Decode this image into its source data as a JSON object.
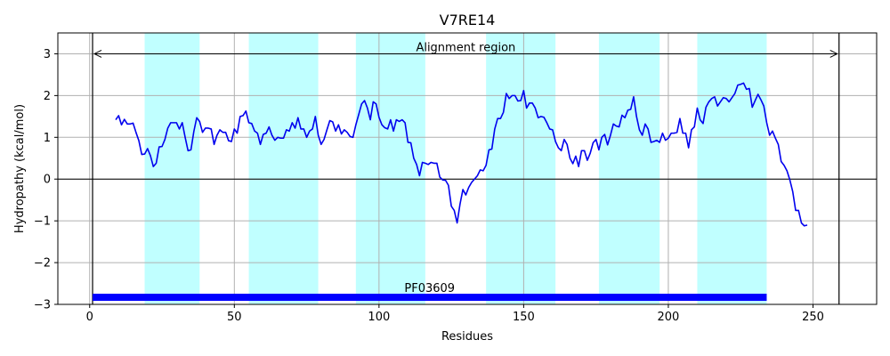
{
  "chart_data": {
    "type": "line",
    "title": "V7RE14",
    "xlabel": "Residues",
    "ylabel": "Hydropathy (kcal/mol)",
    "xlim": [
      -11,
      272
    ],
    "ylim": [
      -3,
      3.5
    ],
    "xticks": [
      0,
      50,
      100,
      150,
      200,
      250
    ],
    "yticks": [
      -3,
      -2,
      -1,
      0,
      1,
      2,
      3
    ],
    "xtick_labels": [
      "0",
      "50",
      "100",
      "150",
      "200",
      "250"
    ],
    "ytick_labels": [
      "−3",
      "−2",
      "−1",
      "0",
      "1",
      "2",
      "3"
    ],
    "grid": true,
    "colors": {
      "line": "#0000ee",
      "band": "#c0ffff",
      "domain_bar": "#0000ff",
      "grid": "#b0b0b0"
    },
    "highlight_bands": [
      [
        19,
        38
      ],
      [
        55,
        79
      ],
      [
        92,
        116
      ],
      [
        137,
        161
      ],
      [
        176,
        197
      ],
      [
        210,
        234
      ]
    ],
    "vertical_lines": [
      1,
      259
    ],
    "alignment_region": {
      "label": "Alignment region",
      "start": 1,
      "end": 259,
      "y": 3
    },
    "domain": {
      "label": "PF03609",
      "start": 1,
      "end": 234,
      "y": -2.83
    },
    "series": [
      {
        "x": [
          9,
          10,
          11,
          12,
          13,
          14,
          15,
          16,
          17,
          18,
          19,
          20,
          21,
          22,
          23,
          24,
          25,
          26,
          27,
          28,
          29,
          30,
          31,
          32,
          33,
          34,
          35,
          36,
          37,
          38,
          39,
          40,
          41,
          42,
          43,
          44,
          45,
          46,
          47,
          48,
          49,
          50,
          51,
          52,
          53,
          54,
          55,
          56,
          57,
          58,
          59,
          60,
          61,
          62,
          63,
          64,
          65,
          66,
          67,
          68,
          69,
          70,
          71,
          72,
          73,
          74,
          75,
          76,
          77,
          78,
          79,
          80,
          81,
          82,
          83,
          84,
          85,
          86,
          87,
          88,
          89,
          90,
          91,
          92,
          93,
          94,
          95,
          96,
          97,
          98,
          99,
          100,
          101,
          102,
          103,
          104,
          105,
          106,
          107,
          108,
          109,
          110,
          111,
          112,
          113,
          114,
          115,
          116,
          117,
          118,
          119,
          120,
          121,
          122,
          123,
          124,
          125,
          126,
          127,
          128,
          129,
          130,
          131,
          132,
          133,
          134,
          135,
          136,
          137,
          138,
          139,
          140,
          141,
          142,
          143,
          144,
          145,
          146,
          147,
          148,
          149,
          150,
          151,
          152,
          153,
          154,
          155,
          156,
          157,
          158,
          159,
          160,
          161,
          162,
          163,
          164,
          165,
          166,
          167,
          168,
          169,
          170,
          171,
          172,
          173,
          174,
          175,
          176,
          177,
          178,
          179,
          180,
          181,
          182,
          183,
          184,
          185,
          186,
          187,
          188,
          189,
          190,
          191,
          192,
          193,
          194,
          195,
          196,
          197,
          198,
          199,
          200,
          201,
          202,
          203,
          204,
          205,
          206,
          207,
          208,
          209,
          210,
          211,
          212,
          213,
          214,
          215,
          216,
          217,
          218,
          219,
          220,
          221,
          222,
          223,
          224,
          225,
          226,
          227,
          228,
          229,
          230,
          231,
          232,
          233,
          234,
          235,
          236,
          237,
          238,
          239,
          240,
          241,
          242,
          243,
          244,
          245,
          246,
          247,
          248
        ],
        "y": [
          1.42,
          1.52,
          1.3,
          1.43,
          1.32,
          1.32,
          1.34,
          1.12,
          0.92,
          0.59,
          0.6,
          0.73,
          0.56,
          0.3,
          0.38,
          0.77,
          0.78,
          0.95,
          1.22,
          1.35,
          1.35,
          1.35,
          1.2,
          1.35,
          1.0,
          0.68,
          0.7,
          1.14,
          1.47,
          1.38,
          1.12,
          1.22,
          1.22,
          1.2,
          0.83,
          1.05,
          1.18,
          1.12,
          1.12,
          0.92,
          0.9,
          1.2,
          1.1,
          1.5,
          1.52,
          1.63,
          1.35,
          1.33,
          1.15,
          1.1,
          0.83,
          1.07,
          1.1,
          1.25,
          1.05,
          0.93,
          1.0,
          0.98,
          0.98,
          1.18,
          1.15,
          1.35,
          1.22,
          1.47,
          1.2,
          1.2,
          1.0,
          1.15,
          1.2,
          1.5,
          1.05,
          0.83,
          0.95,
          1.18,
          1.4,
          1.37,
          1.15,
          1.3,
          1.08,
          1.18,
          1.12,
          1.02,
          1.0,
          1.3,
          1.55,
          1.8,
          1.88,
          1.7,
          1.42,
          1.85,
          1.8,
          1.48,
          1.3,
          1.23,
          1.2,
          1.42,
          1.15,
          1.42,
          1.38,
          1.42,
          1.35,
          0.88,
          0.87,
          0.5,
          0.35,
          0.08,
          0.4,
          0.38,
          0.35,
          0.4,
          0.38,
          0.38,
          0.05,
          -0.02,
          -0.03,
          -0.15,
          -0.65,
          -0.75,
          -1.05,
          -0.6,
          -0.25,
          -0.38,
          -0.2,
          -0.08,
          0.0,
          0.08,
          0.22,
          0.2,
          0.33,
          0.7,
          0.72,
          1.2,
          1.45,
          1.45,
          1.6,
          2.05,
          1.93,
          2.0,
          2.0,
          1.87,
          1.88,
          2.12,
          1.7,
          1.82,
          1.82,
          1.7,
          1.47,
          1.5,
          1.48,
          1.35,
          1.2,
          1.18,
          0.9,
          0.75,
          0.68,
          0.95,
          0.83,
          0.5,
          0.37,
          0.55,
          0.3,
          0.68,
          0.68,
          0.45,
          0.62,
          0.87,
          0.95,
          0.7,
          1.0,
          1.07,
          0.82,
          1.05,
          1.32,
          1.27,
          1.25,
          1.53,
          1.47,
          1.65,
          1.67,
          1.97,
          1.5,
          1.18,
          1.05,
          1.32,
          1.2,
          0.88,
          0.9,
          0.93,
          0.88,
          1.1,
          0.93,
          0.98,
          1.1,
          1.1,
          1.12,
          1.45,
          1.1,
          1.1,
          0.75,
          1.18,
          1.25,
          1.7,
          1.42,
          1.33,
          1.72,
          1.85,
          1.93,
          1.97,
          1.75,
          1.85,
          1.95,
          1.93,
          1.85,
          1.95,
          2.05,
          2.25,
          2.27,
          2.3,
          2.15,
          2.17,
          1.72,
          1.88,
          2.03,
          1.9,
          1.75,
          1.35,
          1.05,
          1.15,
          0.98,
          0.83,
          0.42,
          0.33,
          0.2,
          -0.02,
          -0.3,
          -0.75,
          -0.75,
          -1.05,
          -1.12,
          -1.1
        ]
      }
    ]
  }
}
